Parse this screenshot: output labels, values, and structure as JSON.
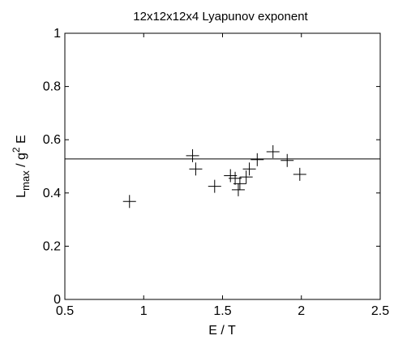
{
  "chart_data": {
    "type": "scatter",
    "title": "12x12x12x4 Lyapunov exponent",
    "xlabel": "E / T",
    "ylabel": {
      "base": "L",
      "sub": "max",
      "mid": " / g",
      "sup": "2",
      "end": " E"
    },
    "xlim": [
      0.5,
      2.5
    ],
    "ylim": [
      0,
      1
    ],
    "xticks": [
      0.5,
      1,
      1.5,
      2,
      2.5
    ],
    "xtick_labels": [
      "0.5",
      "1",
      "1.5",
      "2",
      "2.5"
    ],
    "yticks": [
      0,
      0.2,
      0.4,
      0.6,
      0.8,
      1
    ],
    "ytick_labels": [
      "0",
      "0.2",
      "0.4",
      "0.6",
      "0.8",
      "1"
    ],
    "grid": false,
    "marker": "plus",
    "color": "#000000",
    "reference_line": {
      "y": 0.528
    },
    "points": [
      {
        "x": 0.91,
        "y": 0.368
      },
      {
        "x": 1.31,
        "y": 0.54
      },
      {
        "x": 1.33,
        "y": 0.49
      },
      {
        "x": 1.45,
        "y": 0.425
      },
      {
        "x": 1.55,
        "y": 0.465
      },
      {
        "x": 1.58,
        "y": 0.455
      },
      {
        "x": 1.6,
        "y": 0.412
      },
      {
        "x": 1.61,
        "y": 0.435
      },
      {
        "x": 1.65,
        "y": 0.46
      },
      {
        "x": 1.67,
        "y": 0.49
      },
      {
        "x": 1.72,
        "y": 0.525
      },
      {
        "x": 1.82,
        "y": 0.555
      },
      {
        "x": 1.91,
        "y": 0.522
      },
      {
        "x": 1.99,
        "y": 0.47
      }
    ]
  }
}
